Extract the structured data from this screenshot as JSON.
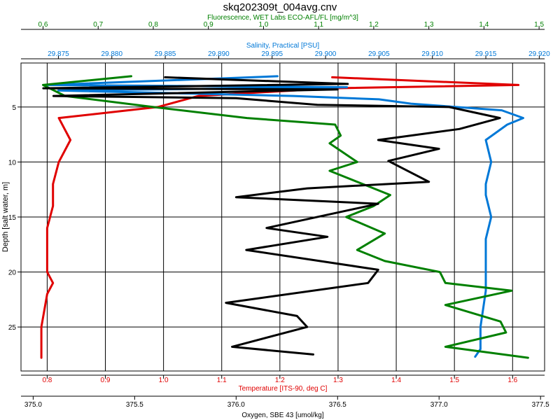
{
  "chart_data": {
    "type": "line",
    "title": "skq202309t_004avg.cnv",
    "y_axis": {
      "label": "Depth [salt water, m]",
      "range": [
        1,
        29
      ],
      "inverted": true,
      "ticks": [
        5,
        10,
        15,
        20,
        25
      ],
      "grid": true
    },
    "x_axes": [
      {
        "key": "fluorescence",
        "label": "Fluorescence, WET Labs ECO-AFL/FL [mg/m^3]",
        "position": "top-outer",
        "color": "#008000",
        "range": [
          0.56,
          1.51
        ],
        "ticks": [
          0.6,
          0.7,
          0.8,
          0.9,
          1.0,
          1.1,
          1.2,
          1.3,
          1.4,
          1.5
        ],
        "tick_labels": [
          "0.6",
          "0.7",
          "0.8",
          "0.9",
          "1.0",
          "1.1",
          "1.2",
          "1.3",
          "1.4",
          "1.5"
        ]
      },
      {
        "key": "salinity",
        "label": "Salinity, Practical [PSU]",
        "position": "top-inner",
        "color": "#0078d7",
        "range": [
          29.8715,
          29.9205
        ],
        "ticks": [
          29.875,
          29.88,
          29.885,
          29.89,
          29.895,
          29.9,
          29.905,
          29.91,
          29.915,
          29.92
        ],
        "tick_labels": [
          "29.875",
          "29.880",
          "29.885",
          "29.890",
          "29.895",
          "29.900",
          "29.905",
          "29.910",
          "29.915",
          "29.920"
        ]
      },
      {
        "key": "temperature",
        "label": "Temperature [ITS-90, deg C]",
        "position": "bottom-inner",
        "color": "#e00000",
        "range": [
          0.755,
          1.655
        ],
        "ticks": [
          0.8,
          0.9,
          1.0,
          1.1,
          1.2,
          1.3,
          1.4,
          1.5,
          1.6
        ],
        "tick_labels": [
          "0.8",
          "0.9",
          "1.0",
          "1.1",
          "1.2",
          "1.3",
          "1.4",
          "1.5",
          "1.6"
        ]
      },
      {
        "key": "oxygen",
        "label": "Oxygen, SBE 43 [umol/kg]",
        "position": "bottom-outer",
        "color": "#000000",
        "range": [
          374.94,
          377.52
        ],
        "ticks": [
          375.0,
          375.5,
          376.0,
          376.5,
          377.0,
          377.5
        ],
        "tick_labels": [
          "375.0",
          "375.5",
          "376.0",
          "376.5",
          "377.0",
          "377.5"
        ]
      }
    ],
    "series": [
      {
        "key": "temperature",
        "color": "#e00000",
        "points": [
          [
            1.29,
            2.3
          ],
          [
            1.61,
            3.0
          ],
          [
            1.29,
            3.3
          ],
          [
            1.06,
            4.0
          ],
          [
            0.99,
            5.0
          ],
          [
            0.82,
            6.0
          ],
          [
            0.83,
            7.0
          ],
          [
            0.84,
            8.0
          ],
          [
            0.82,
            10.0
          ],
          [
            0.81,
            12.0
          ],
          [
            0.81,
            14.0
          ],
          [
            0.8,
            16.0
          ],
          [
            0.8,
            18.0
          ],
          [
            0.8,
            20.0
          ],
          [
            0.81,
            21.0
          ],
          [
            0.8,
            22.0
          ],
          [
            0.79,
            25.0
          ],
          [
            0.79,
            27.0
          ],
          [
            0.79,
            27.8
          ]
        ]
      },
      {
        "key": "salinity",
        "color": "#0078d7",
        "points": [
          [
            29.8955,
            2.2
          ],
          [
            29.874,
            3.0
          ],
          [
            29.902,
            3.2
          ],
          [
            29.875,
            3.5
          ],
          [
            29.897,
            4.0
          ],
          [
            29.905,
            4.3
          ],
          [
            29.908,
            4.7
          ],
          [
            29.9165,
            5.3
          ],
          [
            29.9185,
            6.0
          ],
          [
            29.917,
            6.6
          ],
          [
            29.915,
            8.0
          ],
          [
            29.9155,
            10.0
          ],
          [
            29.915,
            12.0
          ],
          [
            29.915,
            13.0
          ],
          [
            29.9155,
            15.0
          ],
          [
            29.915,
            17.0
          ],
          [
            29.915,
            20.0
          ],
          [
            29.915,
            21.7
          ],
          [
            29.9145,
            25.0
          ],
          [
            29.9145,
            27.0
          ],
          [
            29.914,
            27.7
          ]
        ]
      },
      {
        "key": "fluorescence",
        "color": "#008000",
        "points": [
          [
            0.76,
            2.2
          ],
          [
            0.6,
            3.0
          ],
          [
            0.64,
            4.0
          ],
          [
            0.8,
            5.0
          ],
          [
            0.97,
            6.0
          ],
          [
            1.13,
            6.6
          ],
          [
            1.14,
            7.6
          ],
          [
            1.12,
            8.3
          ],
          [
            1.17,
            10.0
          ],
          [
            1.12,
            10.8
          ],
          [
            1.18,
            12.0
          ],
          [
            1.23,
            13.0
          ],
          [
            1.2,
            14.0
          ],
          [
            1.15,
            15.0
          ],
          [
            1.22,
            16.5
          ],
          [
            1.17,
            18.0
          ],
          [
            1.22,
            19.0
          ],
          [
            1.32,
            20.0
          ],
          [
            1.33,
            21.0
          ],
          [
            1.45,
            21.7
          ],
          [
            1.33,
            23.0
          ],
          [
            1.43,
            24.5
          ],
          [
            1.44,
            25.5
          ],
          [
            1.33,
            26.8
          ],
          [
            1.48,
            27.8
          ]
        ]
      },
      {
        "key": "oxygen",
        "color": "#000000",
        "points": [
          [
            375.65,
            2.3
          ],
          [
            376.55,
            2.9
          ],
          [
            375.05,
            3.3
          ],
          [
            376.5,
            3.4
          ],
          [
            375.1,
            4.0
          ],
          [
            376.0,
            4.2
          ],
          [
            376.4,
            4.8
          ],
          [
            377.05,
            5.0
          ],
          [
            377.3,
            6.0
          ],
          [
            377.1,
            7.0
          ],
          [
            376.7,
            8.0
          ],
          [
            377.0,
            8.8
          ],
          [
            376.75,
            9.9
          ],
          [
            376.95,
            11.8
          ],
          [
            376.35,
            12.4
          ],
          [
            376.0,
            13.2
          ],
          [
            376.7,
            13.8
          ],
          [
            376.15,
            16.0
          ],
          [
            376.45,
            16.8
          ],
          [
            376.05,
            18.0
          ],
          [
            376.7,
            19.8
          ],
          [
            376.65,
            21.0
          ],
          [
            375.95,
            22.8
          ],
          [
            376.3,
            24.0
          ],
          [
            376.35,
            25.0
          ],
          [
            375.98,
            26.8
          ],
          [
            376.38,
            27.5
          ]
        ]
      }
    ]
  }
}
